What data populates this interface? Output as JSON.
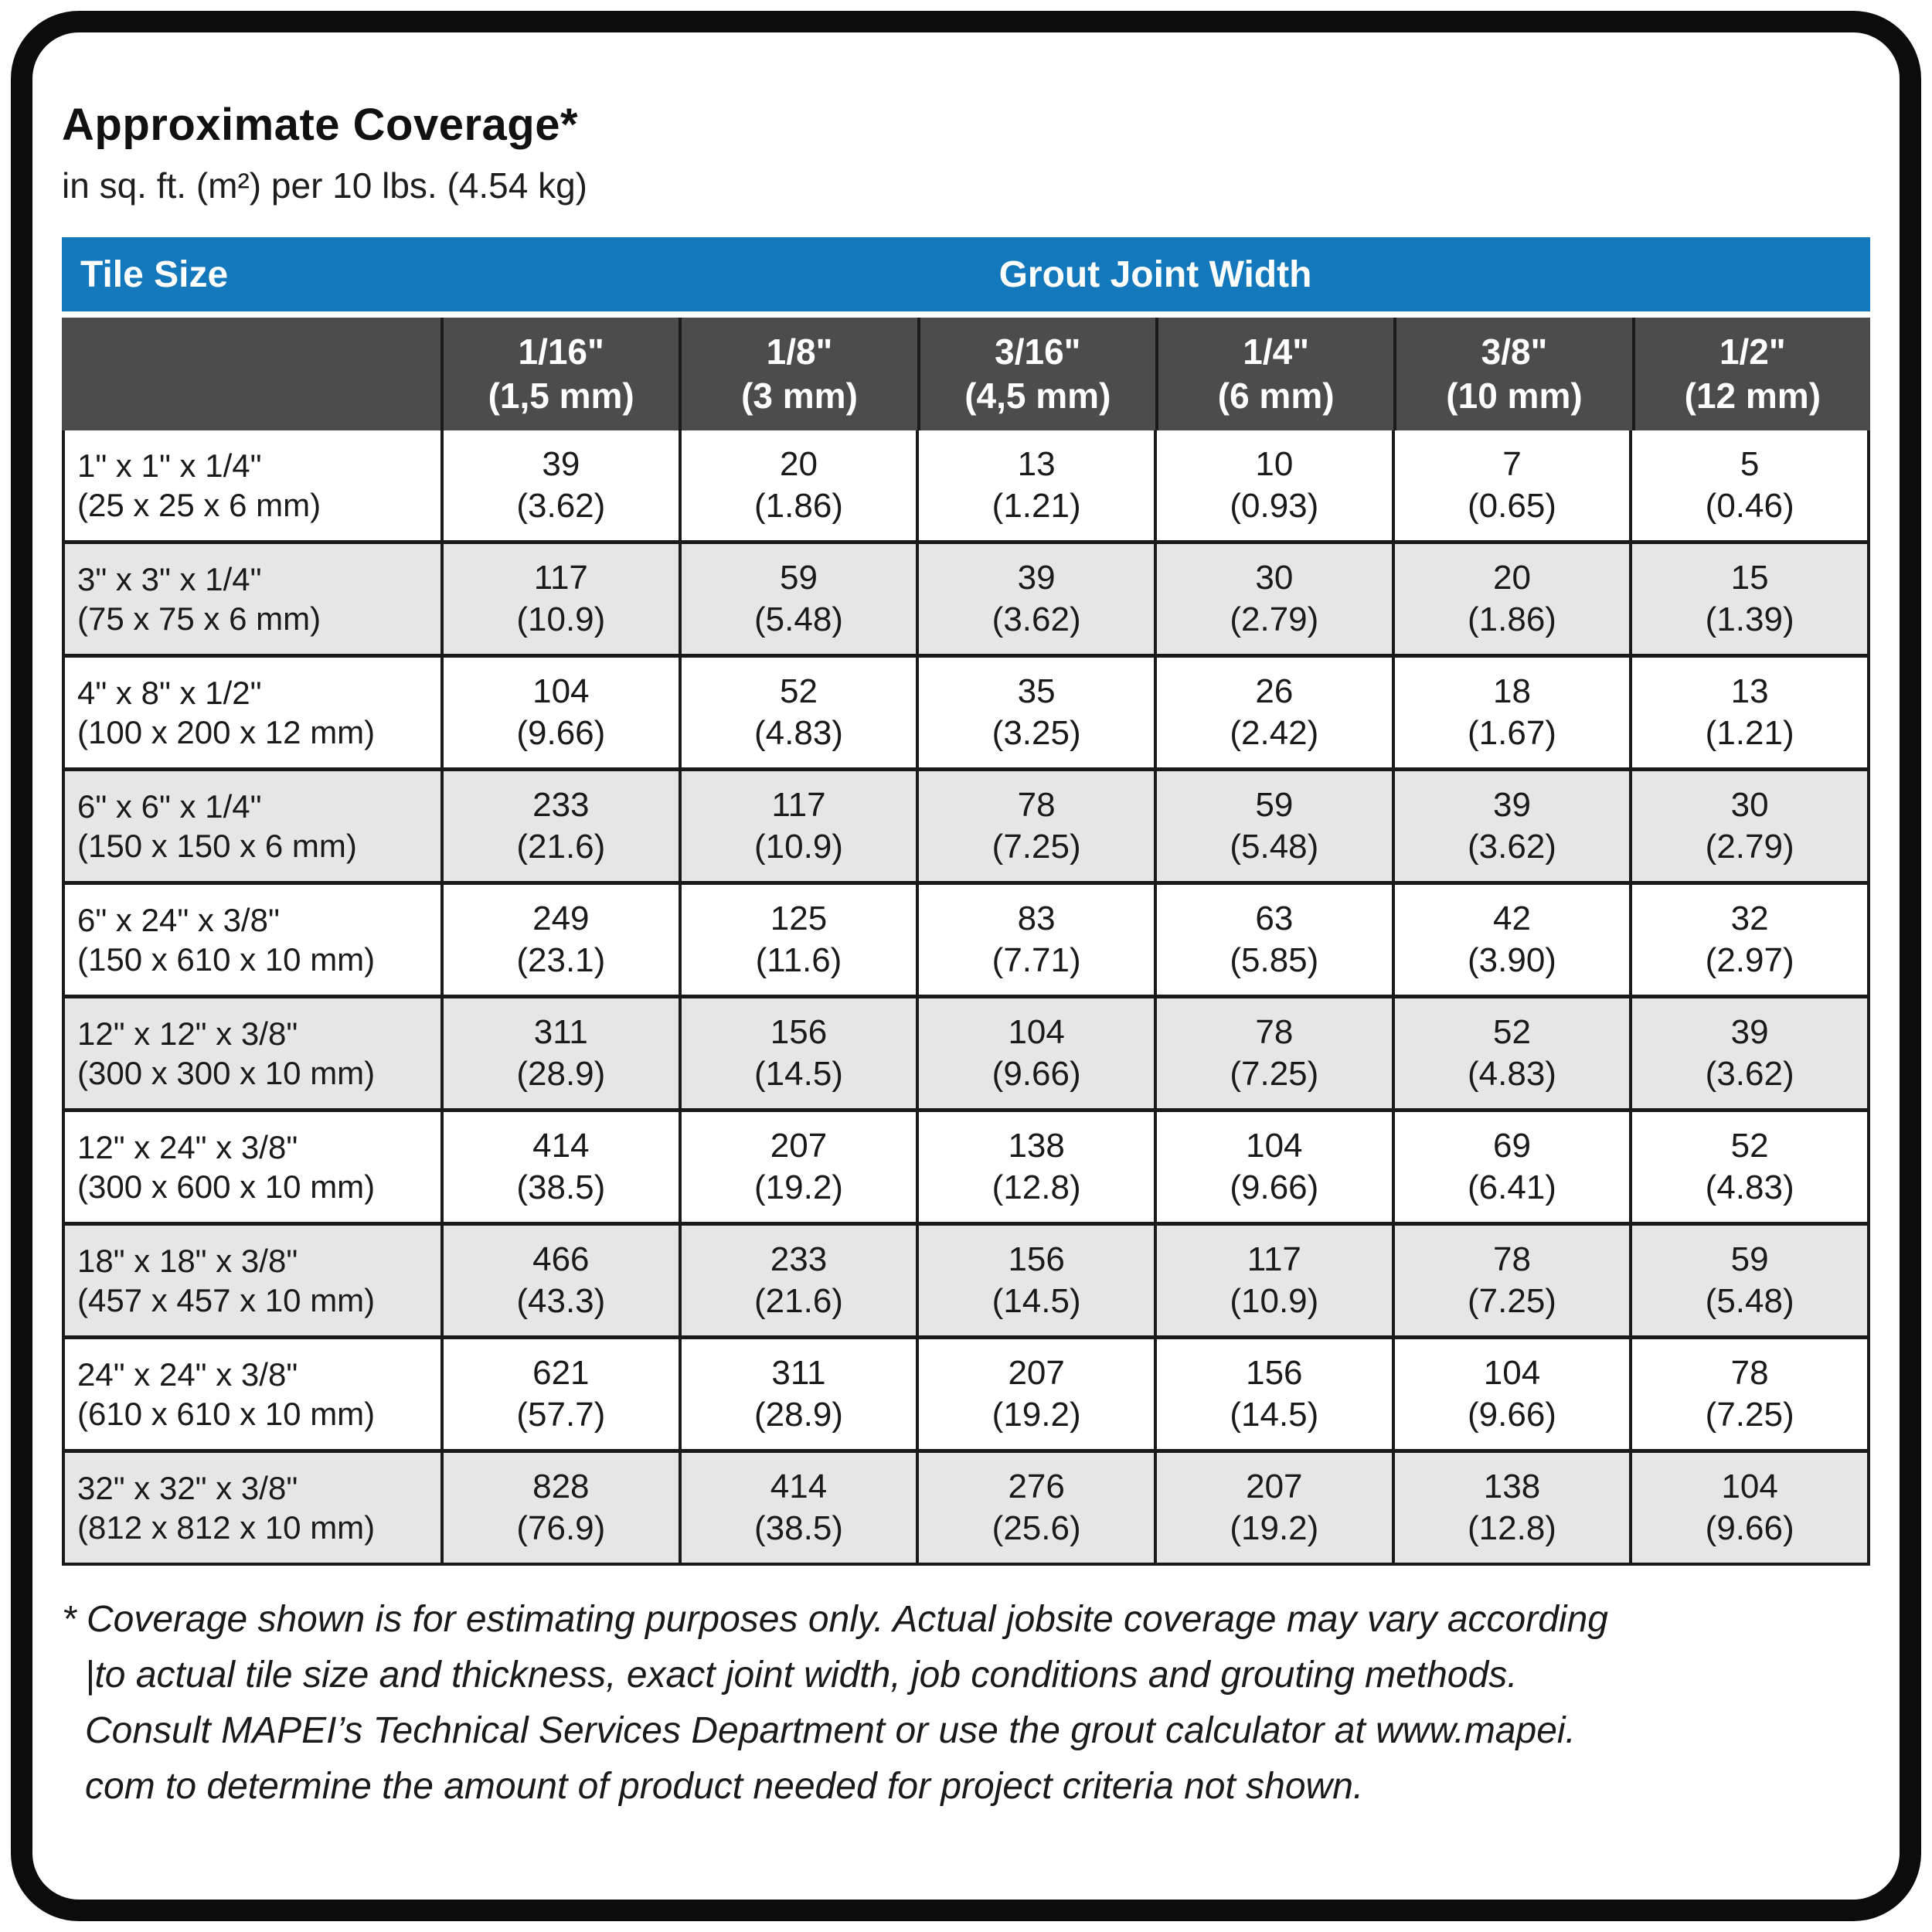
{
  "page": {
    "title": "Approximate Coverage*",
    "subtitle": "in sq. ft. (m²) per 10 lbs. (4.54 kg)"
  },
  "colors": {
    "header_blue": "#1478BD",
    "header_dark_gray": "#4C4C4C",
    "row_alt_gray": "#E6E6E6",
    "grid_line": "#1A1A1A",
    "text": "#1A1A1A"
  },
  "table": {
    "corner_label": "Tile Size",
    "group_header": "Grout Joint Width",
    "columns": [
      {
        "fraction": "1/16\"",
        "metric": "(1,5 mm)"
      },
      {
        "fraction": "1/8\"",
        "metric": "(3 mm)"
      },
      {
        "fraction": "3/16\"",
        "metric": "(4,5 mm)"
      },
      {
        "fraction": "1/4\"",
        "metric": "(6 mm)"
      },
      {
        "fraction": "3/8\"",
        "metric": "(10 mm)"
      },
      {
        "fraction": "1/2\"",
        "metric": "(12 mm)"
      }
    ],
    "rows": [
      {
        "size": "1\" x 1\" x 1/4\"",
        "metric": "(25 x 25 x 6 mm)",
        "values": [
          [
            "39",
            "(3.62)"
          ],
          [
            "20",
            "(1.86)"
          ],
          [
            "13",
            "(1.21)"
          ],
          [
            "10",
            "(0.93)"
          ],
          [
            "7",
            "(0.65)"
          ],
          [
            "5",
            "(0.46)"
          ]
        ]
      },
      {
        "size": "3\" x 3\" x 1/4\"",
        "metric": "(75 x 75 x 6 mm)",
        "values": [
          [
            "117",
            "(10.9)"
          ],
          [
            "59",
            "(5.48)"
          ],
          [
            "39",
            "(3.62)"
          ],
          [
            "30",
            "(2.79)"
          ],
          [
            "20",
            "(1.86)"
          ],
          [
            "15",
            "(1.39)"
          ]
        ]
      },
      {
        "size": "4\" x 8\" x 1/2\"",
        "metric": "(100 x 200 x 12 mm)",
        "values": [
          [
            "104",
            "(9.66)"
          ],
          [
            "52",
            "(4.83)"
          ],
          [
            "35",
            "(3.25)"
          ],
          [
            "26",
            "(2.42)"
          ],
          [
            "18",
            "(1.67)"
          ],
          [
            "13",
            "(1.21)"
          ]
        ]
      },
      {
        "size": "6\" x 6\" x 1/4\"",
        "metric": "(150 x 150 x 6 mm)",
        "values": [
          [
            "233",
            "(21.6)"
          ],
          [
            "117",
            "(10.9)"
          ],
          [
            "78",
            "(7.25)"
          ],
          [
            "59",
            "(5.48)"
          ],
          [
            "39",
            "(3.62)"
          ],
          [
            "30",
            "(2.79)"
          ]
        ]
      },
      {
        "size": "6\" x 24\" x 3/8\"",
        "metric": "(150 x 610 x 10 mm)",
        "values": [
          [
            "249",
            "(23.1)"
          ],
          [
            "125",
            "(11.6)"
          ],
          [
            "83",
            "(7.71)"
          ],
          [
            "63",
            "(5.85)"
          ],
          [
            "42",
            "(3.90)"
          ],
          [
            "32",
            "(2.97)"
          ]
        ]
      },
      {
        "size": "12\" x 12\" x 3/8\"",
        "metric": "(300 x 300 x 10 mm)",
        "values": [
          [
            "311",
            "(28.9)"
          ],
          [
            "156",
            "(14.5)"
          ],
          [
            "104",
            "(9.66)"
          ],
          [
            "78",
            "(7.25)"
          ],
          [
            "52",
            "(4.83)"
          ],
          [
            "39",
            "(3.62)"
          ]
        ]
      },
      {
        "size": "12\" x 24\" x 3/8\"",
        "metric": "(300 x 600 x 10 mm)",
        "values": [
          [
            "414",
            "(38.5)"
          ],
          [
            "207",
            "(19.2)"
          ],
          [
            "138",
            "(12.8)"
          ],
          [
            "104",
            "(9.66)"
          ],
          [
            "69",
            "(6.41)"
          ],
          [
            "52",
            "(4.83)"
          ]
        ]
      },
      {
        "size": "18\" x 18\" x 3/8\"",
        "metric": "(457 x 457 x 10 mm)",
        "values": [
          [
            "466",
            "(43.3)"
          ],
          [
            "233",
            "(21.6)"
          ],
          [
            "156",
            "(14.5)"
          ],
          [
            "117",
            "(10.9)"
          ],
          [
            "78",
            "(7.25)"
          ],
          [
            "59",
            "(5.48)"
          ]
        ]
      },
      {
        "size": "24\" x 24\" x 3/8\"",
        "metric": "(610 x 610 x 10 mm)",
        "values": [
          [
            "621",
            "(57.7)"
          ],
          [
            "311",
            "(28.9)"
          ],
          [
            "207",
            "(19.2)"
          ],
          [
            "156",
            "(14.5)"
          ],
          [
            "104",
            "(9.66)"
          ],
          [
            "78",
            "(7.25)"
          ]
        ]
      },
      {
        "size": "32\" x 32\" x 3/8\"",
        "metric": "(812 x 812 x 10 mm)",
        "values": [
          [
            "828",
            "(76.9)"
          ],
          [
            "414",
            "(38.5)"
          ],
          [
            "276",
            "(25.6)"
          ],
          [
            "207",
            "(19.2)"
          ],
          [
            "138",
            "(12.8)"
          ],
          [
            "104",
            "(9.66)"
          ]
        ]
      }
    ]
  },
  "footnote": {
    "lines": [
      "* Coverage shown is for estimating purposes only. Actual jobsite coverage may vary according",
      "|to actual tile size and thickness, exact joint width, job conditions and grouting methods.",
      "Consult MAPEI’s Technical Services Department or use the grout calculator at www.mapei.",
      "com to determine the amount of product needed for project criteria not shown."
    ]
  }
}
